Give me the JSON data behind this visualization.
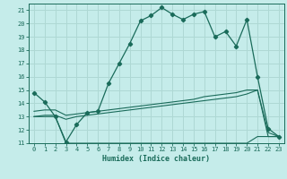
{
  "xlabel": "Humidex (Indice chaleur)",
  "xlim": [
    -0.5,
    23.5
  ],
  "ylim": [
    11,
    21.5
  ],
  "yticks": [
    11,
    12,
    13,
    14,
    15,
    16,
    17,
    18,
    19,
    20,
    21
  ],
  "xticks": [
    0,
    1,
    2,
    3,
    4,
    5,
    6,
    7,
    8,
    9,
    10,
    11,
    12,
    13,
    14,
    15,
    16,
    17,
    18,
    19,
    20,
    21,
    22,
    23
  ],
  "bg_color": "#c5ecea",
  "grid_color": "#aed8d4",
  "line_color": "#1a6b5a",
  "humidex": [
    14.8,
    14.1,
    13.0,
    11.1,
    12.4,
    13.3,
    13.4,
    15.5,
    17.0,
    18.5,
    20.2,
    20.6,
    21.2,
    20.7,
    20.3,
    20.7,
    20.9,
    19.0,
    19.4,
    18.3,
    20.3,
    16.0,
    12.1,
    11.5
  ],
  "line_flat": [
    13.0,
    13.0,
    13.0,
    11.0,
    11.0,
    11.0,
    11.0,
    11.0,
    11.0,
    11.0,
    11.0,
    11.0,
    11.0,
    11.0,
    11.0,
    11.0,
    11.0,
    11.0,
    11.0,
    11.0,
    11.0,
    11.5,
    11.5,
    11.5
  ],
  "line_mid1": [
    13.0,
    13.1,
    13.1,
    12.8,
    13.0,
    13.1,
    13.2,
    13.3,
    13.4,
    13.5,
    13.6,
    13.7,
    13.8,
    13.9,
    14.0,
    14.1,
    14.2,
    14.3,
    14.4,
    14.5,
    14.7,
    15.0,
    11.5,
    11.5
  ],
  "line_mid2": [
    13.4,
    13.5,
    13.5,
    13.1,
    13.2,
    13.3,
    13.4,
    13.5,
    13.6,
    13.7,
    13.8,
    13.9,
    14.0,
    14.1,
    14.2,
    14.3,
    14.5,
    14.6,
    14.7,
    14.8,
    15.0,
    15.0,
    11.8,
    11.5
  ]
}
